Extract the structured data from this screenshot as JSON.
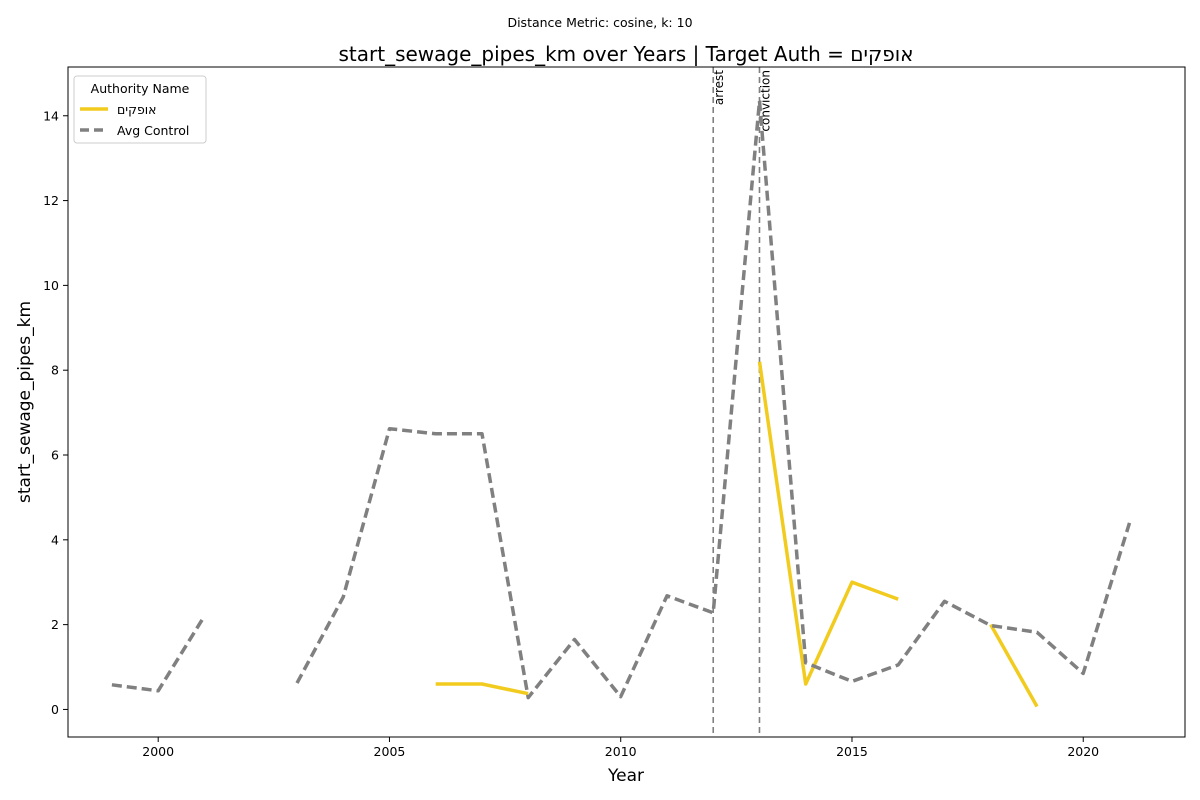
{
  "chart_data": {
    "type": "line",
    "suptitle": "Distance Metric: cosine, k: 10",
    "title": "start_sewage_pipes_km over Years | Target Auth = אופקים",
    "xlabel": "Year",
    "ylabel": "start_sewage_pipes_km",
    "xlim": [
      1998.05,
      2022.2
    ],
    "ylim": [
      -0.65,
      15.15
    ],
    "xticks": [
      2000,
      2005,
      2010,
      2015,
      2020
    ],
    "yticks": [
      0,
      2,
      4,
      6,
      8,
      10,
      12,
      14
    ],
    "grid": false,
    "legend": {
      "title": "Authority Name",
      "placement": "upper-left",
      "entries": [
        "אופקים",
        "Avg Control"
      ]
    },
    "series": [
      {
        "name": "אופקים",
        "color": "#f2cb1f",
        "style": "solid",
        "points": [
          [
            2006,
            0.6
          ],
          [
            2007,
            0.6
          ],
          [
            2008,
            0.37
          ],
          [
            2009,
            null
          ],
          [
            2010,
            null
          ],
          [
            2011,
            null
          ],
          [
            2012,
            null
          ],
          [
            2013,
            8.2
          ],
          [
            2014,
            0.6
          ],
          [
            2015,
            3.0
          ],
          [
            2016,
            2.6
          ],
          [
            2017,
            null
          ],
          [
            2018,
            2.0
          ],
          [
            2019,
            0.07
          ]
        ]
      },
      {
        "name": "Avg Control",
        "color": "#808080",
        "style": "dashed",
        "points": [
          [
            1999,
            0.58
          ],
          [
            2000,
            0.44
          ],
          [
            2001,
            2.2
          ],
          [
            2002,
            null
          ],
          [
            2003,
            0.62
          ],
          [
            2004,
            2.65
          ],
          [
            2005,
            6.62
          ],
          [
            2006,
            6.5
          ],
          [
            2007,
            6.5
          ],
          [
            2008,
            0.28
          ],
          [
            2009,
            1.65
          ],
          [
            2010,
            0.3
          ],
          [
            2011,
            2.68
          ],
          [
            2012,
            2.28
          ],
          [
            2013,
            14.35
          ],
          [
            2014,
            1.1
          ],
          [
            2015,
            0.66
          ],
          [
            2016,
            1.05
          ],
          [
            2017,
            2.55
          ],
          [
            2018,
            1.98
          ],
          [
            2019,
            1.82
          ],
          [
            2020,
            0.85
          ],
          [
            2021,
            4.4
          ]
        ]
      }
    ],
    "events": [
      {
        "x": 2012,
        "label": "arrest"
      },
      {
        "x": 2013,
        "label": "conviction"
      }
    ]
  }
}
